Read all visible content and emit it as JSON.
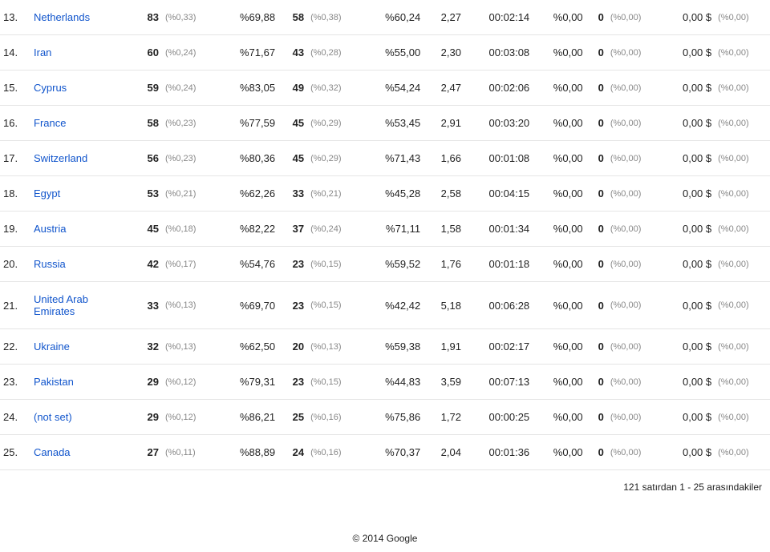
{
  "link_color": "#1155cc",
  "text_color": "#222222",
  "sub_color": "#888888",
  "border_color": "#e5e5e5",
  "rows": [
    {
      "rank": "13.",
      "country": "Netherlands",
      "is_link": true,
      "v1": "83",
      "s1": "(%0,33)",
      "p1": "%69,88",
      "v2": "58",
      "s2": "(%0,38)",
      "p2": "%60,24",
      "v3": "2,27",
      "t": "00:02:14",
      "p3": "%0,00",
      "v4": "0",
      "s3": "(%0,00)",
      "m": "0,00 $",
      "s4": "(%0,00)"
    },
    {
      "rank": "14.",
      "country": "Iran",
      "is_link": true,
      "v1": "60",
      "s1": "(%0,24)",
      "p1": "%71,67",
      "v2": "43",
      "s2": "(%0,28)",
      "p2": "%55,00",
      "v3": "2,30",
      "t": "00:03:08",
      "p3": "%0,00",
      "v4": "0",
      "s3": "(%0,00)",
      "m": "0,00 $",
      "s4": "(%0,00)"
    },
    {
      "rank": "15.",
      "country": "Cyprus",
      "is_link": true,
      "v1": "59",
      "s1": "(%0,24)",
      "p1": "%83,05",
      "v2": "49",
      "s2": "(%0,32)",
      "p2": "%54,24",
      "v3": "2,47",
      "t": "00:02:06",
      "p3": "%0,00",
      "v4": "0",
      "s3": "(%0,00)",
      "m": "0,00 $",
      "s4": "(%0,00)"
    },
    {
      "rank": "16.",
      "country": "France",
      "is_link": true,
      "v1": "58",
      "s1": "(%0,23)",
      "p1": "%77,59",
      "v2": "45",
      "s2": "(%0,29)",
      "p2": "%53,45",
      "v3": "2,91",
      "t": "00:03:20",
      "p3": "%0,00",
      "v4": "0",
      "s3": "(%0,00)",
      "m": "0,00 $",
      "s4": "(%0,00)"
    },
    {
      "rank": "17.",
      "country": "Switzerland",
      "is_link": true,
      "v1": "56",
      "s1": "(%0,23)",
      "p1": "%80,36",
      "v2": "45",
      "s2": "(%0,29)",
      "p2": "%71,43",
      "v3": "1,66",
      "t": "00:01:08",
      "p3": "%0,00",
      "v4": "0",
      "s3": "(%0,00)",
      "m": "0,00 $",
      "s4": "(%0,00)"
    },
    {
      "rank": "18.",
      "country": "Egypt",
      "is_link": true,
      "v1": "53",
      "s1": "(%0,21)",
      "p1": "%62,26",
      "v2": "33",
      "s2": "(%0,21)",
      "p2": "%45,28",
      "v3": "2,58",
      "t": "00:04:15",
      "p3": "%0,00",
      "v4": "0",
      "s3": "(%0,00)",
      "m": "0,00 $",
      "s4": "(%0,00)"
    },
    {
      "rank": "19.",
      "country": "Austria",
      "is_link": true,
      "v1": "45",
      "s1": "(%0,18)",
      "p1": "%82,22",
      "v2": "37",
      "s2": "(%0,24)",
      "p2": "%71,11",
      "v3": "1,58",
      "t": "00:01:34",
      "p3": "%0,00",
      "v4": "0",
      "s3": "(%0,00)",
      "m": "0,00 $",
      "s4": "(%0,00)"
    },
    {
      "rank": "20.",
      "country": "Russia",
      "is_link": true,
      "v1": "42",
      "s1": "(%0,17)",
      "p1": "%54,76",
      "v2": "23",
      "s2": "(%0,15)",
      "p2": "%59,52",
      "v3": "1,76",
      "t": "00:01:18",
      "p3": "%0,00",
      "v4": "0",
      "s3": "(%0,00)",
      "m": "0,00 $",
      "s4": "(%0,00)"
    },
    {
      "rank": "21.",
      "country": "United Arab Emirates",
      "is_link": true,
      "v1": "33",
      "s1": "(%0,13)",
      "p1": "%69,70",
      "v2": "23",
      "s2": "(%0,15)",
      "p2": "%42,42",
      "v3": "5,18",
      "t": "00:06:28",
      "p3": "%0,00",
      "v4": "0",
      "s3": "(%0,00)",
      "m": "0,00 $",
      "s4": "(%0,00)"
    },
    {
      "rank": "22.",
      "country": "Ukraine",
      "is_link": true,
      "v1": "32",
      "s1": "(%0,13)",
      "p1": "%62,50",
      "v2": "20",
      "s2": "(%0,13)",
      "p2": "%59,38",
      "v3": "1,91",
      "t": "00:02:17",
      "p3": "%0,00",
      "v4": "0",
      "s3": "(%0,00)",
      "m": "0,00 $",
      "s4": "(%0,00)"
    },
    {
      "rank": "23.",
      "country": "Pakistan",
      "is_link": true,
      "v1": "29",
      "s1": "(%0,12)",
      "p1": "%79,31",
      "v2": "23",
      "s2": "(%0,15)",
      "p2": "%44,83",
      "v3": "3,59",
      "t": "00:07:13",
      "p3": "%0,00",
      "v4": "0",
      "s3": "(%0,00)",
      "m": "0,00 $",
      "s4": "(%0,00)"
    },
    {
      "rank": "24.",
      "country": "(not set)",
      "is_link": true,
      "v1": "29",
      "s1": "(%0,12)",
      "p1": "%86,21",
      "v2": "25",
      "s2": "(%0,16)",
      "p2": "%75,86",
      "v3": "1,72",
      "t": "00:00:25",
      "p3": "%0,00",
      "v4": "0",
      "s3": "(%0,00)",
      "m": "0,00 $",
      "s4": "(%0,00)"
    },
    {
      "rank": "25.",
      "country": "Canada",
      "is_link": true,
      "v1": "27",
      "s1": "(%0,11)",
      "p1": "%88,89",
      "v2": "24",
      "s2": "(%0,16)",
      "p2": "%70,37",
      "v3": "2,04",
      "t": "00:01:36",
      "p3": "%0,00",
      "v4": "0",
      "s3": "(%0,00)",
      "m": "0,00 $",
      "s4": "(%0,00)"
    }
  ],
  "footer_note": "121 satırdan 1 - 25 arasındakiler",
  "copyright": "© 2014 Google"
}
